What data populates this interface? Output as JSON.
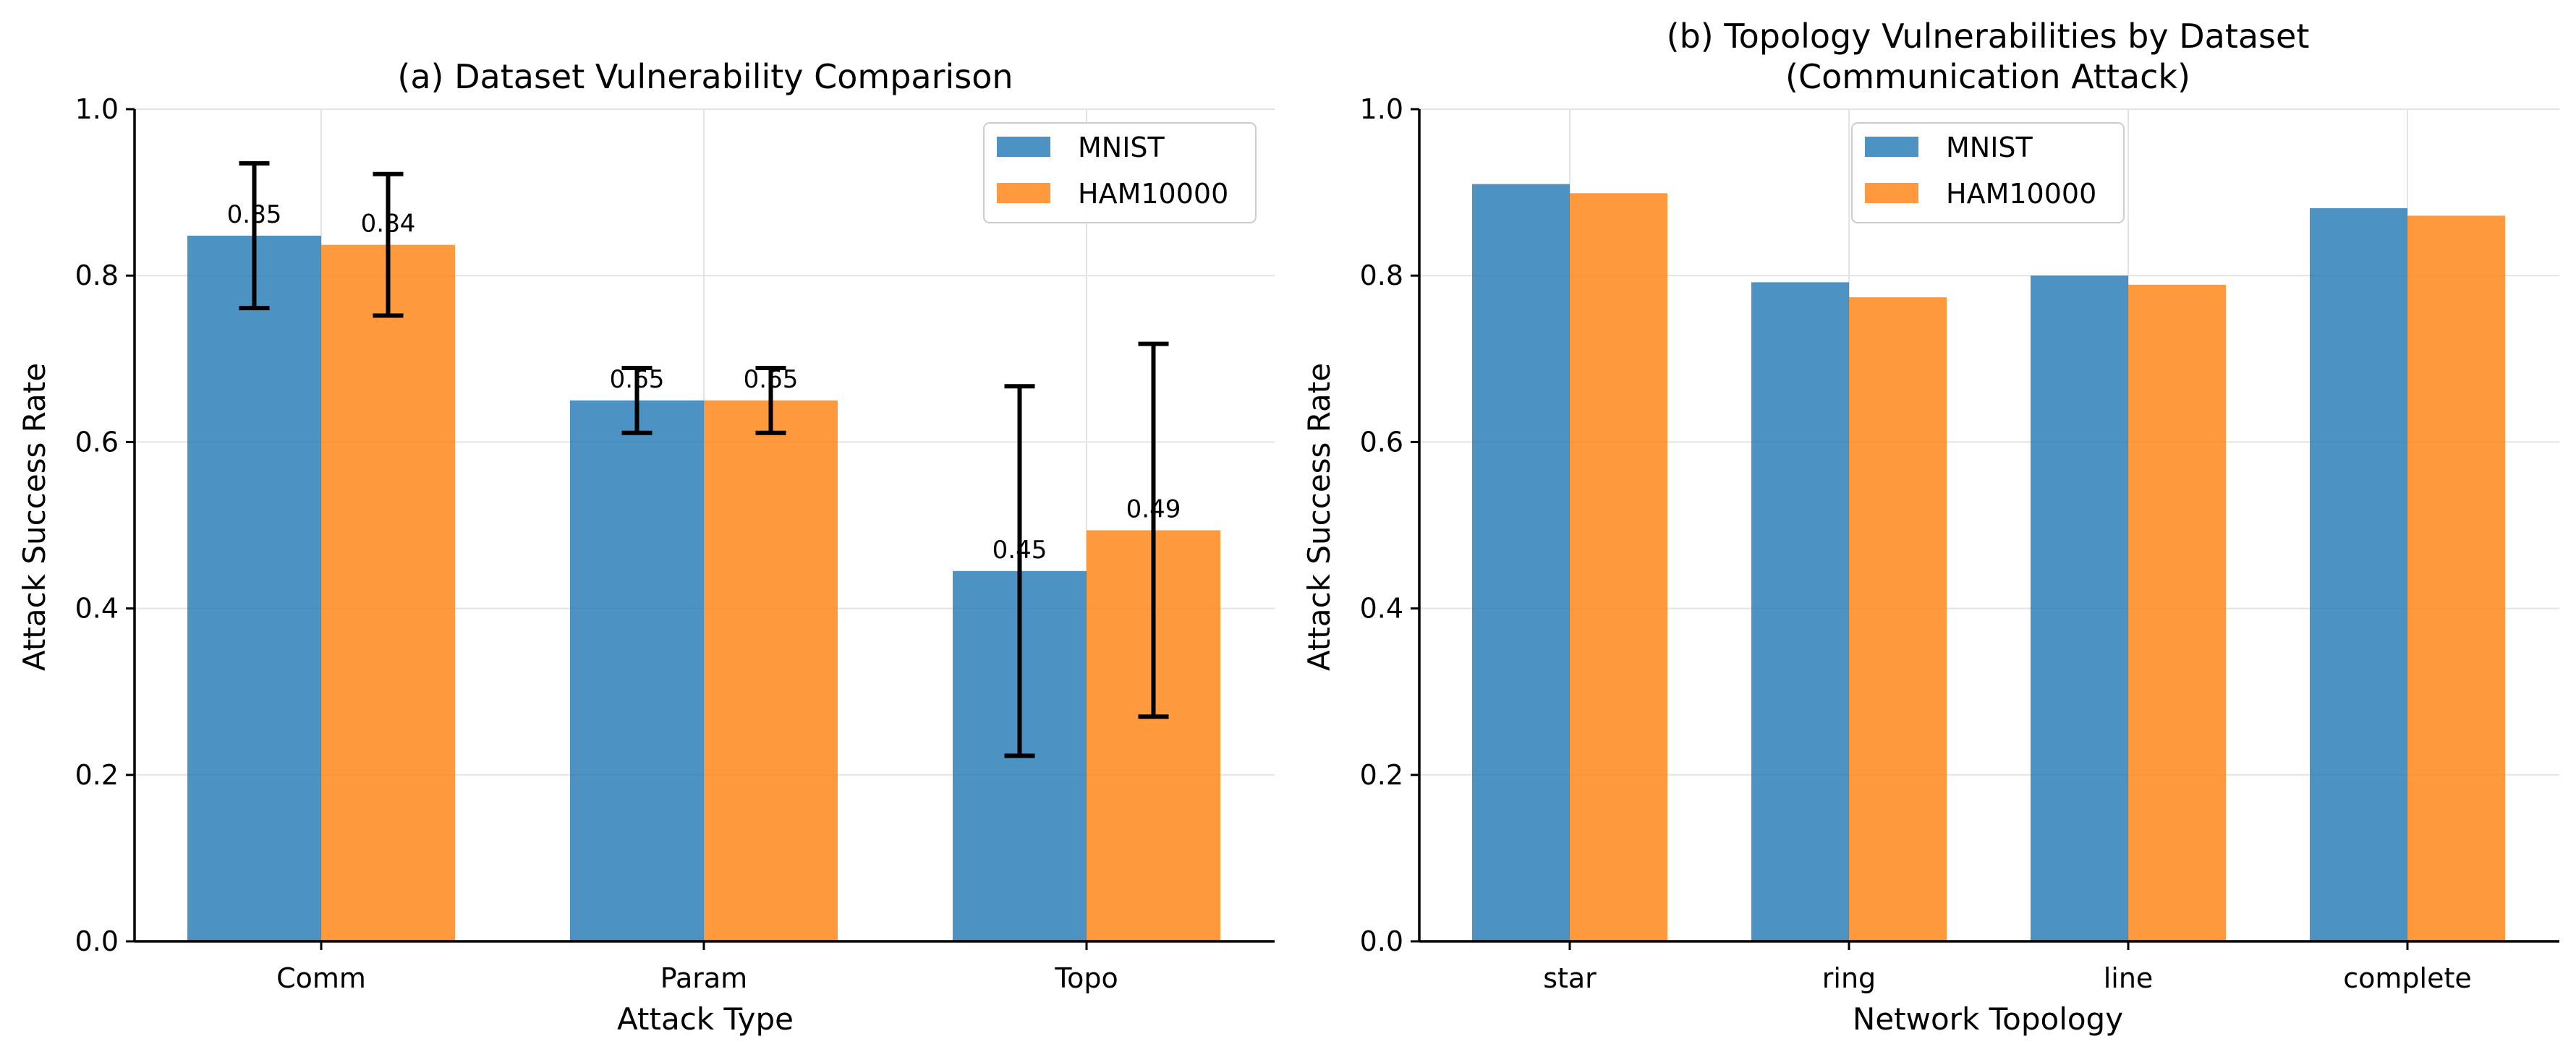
{
  "chart_data": [
    {
      "type": "bar",
      "title": "(a) Dataset Vulnerability Comparison",
      "xlabel": "Attack Type",
      "ylabel": "Attack Success Rate",
      "ylim": [
        0,
        1.0
      ],
      "yticks": [
        "0.0",
        "0.2",
        "0.4",
        "0.6",
        "0.8",
        "1.0"
      ],
      "categories": [
        "Comm",
        "Param",
        "Topo"
      ],
      "series": [
        {
          "name": "MNIST",
          "color": "#1f77b4",
          "values": [
            0.848,
            0.65,
            0.445
          ],
          "errors": [
            0.087,
            0.039,
            0.222
          ],
          "labels": [
            "0.85",
            "0.65",
            "0.45"
          ]
        },
        {
          "name": "HAM10000",
          "color": "#ff7f0e",
          "values": [
            0.837,
            0.65,
            0.494
          ],
          "errors": [
            0.085,
            0.039,
            0.224
          ],
          "labels": [
            "0.84",
            "0.65",
            "0.49"
          ]
        }
      ],
      "grid": true,
      "legend": "upper right"
    },
    {
      "type": "bar",
      "title": "(b) Topology Vulnerabilities by Dataset",
      "subtitle": "(Communication Attack)",
      "xlabel": "Network Topology",
      "ylabel": "Attack Success Rate",
      "ylim": [
        0,
        1.0
      ],
      "yticks": [
        "0.0",
        "0.2",
        "0.4",
        "0.6",
        "0.8",
        "1.0"
      ],
      "categories": [
        "star",
        "ring",
        "line",
        "complete"
      ],
      "series": [
        {
          "name": "MNIST",
          "color": "#1f77b4",
          "values": [
            0.91,
            0.792,
            0.8,
            0.881
          ]
        },
        {
          "name": "HAM10000",
          "color": "#ff7f0e",
          "values": [
            0.899,
            0.774,
            0.789,
            0.872
          ]
        }
      ],
      "grid": true,
      "legend": "upper center"
    }
  ]
}
